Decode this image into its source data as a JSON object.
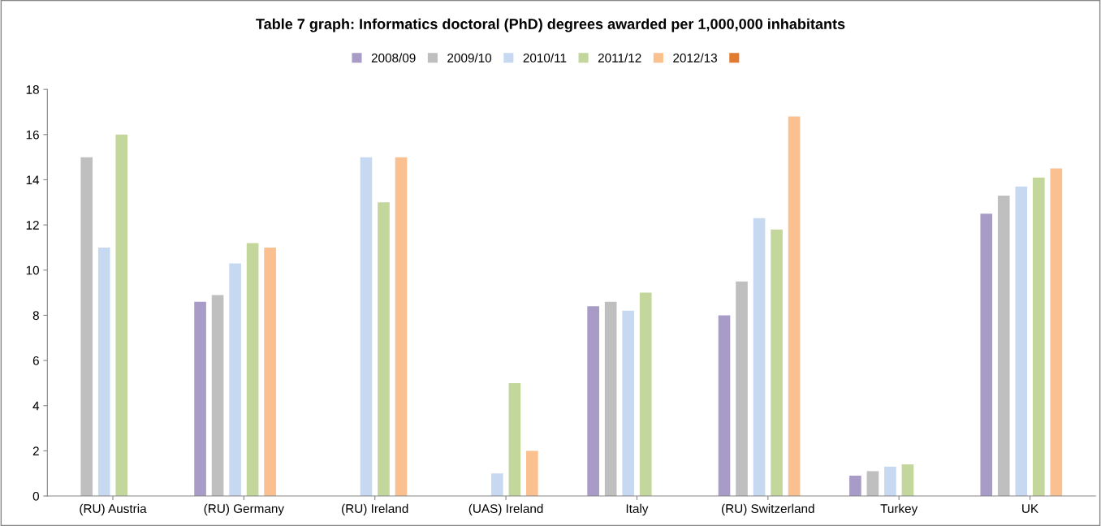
{
  "chart_data": {
    "type": "bar",
    "title": "Table 7 graph: Informatics doctoral (PhD) degrees awarded per 1,000,000 inhabitants",
    "categories": [
      "(RU) Austria",
      "(RU) Germany",
      "(RU) Ireland",
      "(UAS) Ireland",
      "Italy",
      "(RU) Switzerland",
      "Turkey",
      "UK"
    ],
    "series": [
      {
        "name": "2008/09",
        "color": "#a99bc8",
        "values": [
          null,
          8.6,
          null,
          null,
          8.4,
          8.0,
          0.9,
          12.5
        ]
      },
      {
        "name": "2009/10",
        "color": "#bfbfbf",
        "values": [
          15.0,
          8.9,
          null,
          null,
          8.6,
          9.5,
          1.1,
          13.3
        ]
      },
      {
        "name": "2010/11",
        "color": "#c6d9f1",
        "values": [
          11.0,
          10.3,
          15.0,
          1.0,
          8.2,
          12.3,
          1.3,
          13.7
        ]
      },
      {
        "name": "2011/12",
        "color": "#c3d69b",
        "values": [
          16.0,
          11.2,
          13.0,
          5.0,
          9.0,
          11.8,
          1.4,
          14.1
        ]
      },
      {
        "name": "2012/13",
        "color": "#fac090",
        "values": [
          null,
          11.0,
          15.0,
          2.0,
          null,
          16.8,
          null,
          14.5
        ]
      },
      {
        "color": "#e07b30",
        "values": [
          null,
          null,
          null,
          null,
          null,
          null,
          null,
          null
        ]
      }
    ],
    "ylim": [
      0,
      18
    ],
    "yticks": [
      0,
      2,
      4,
      6,
      8,
      10,
      12,
      14,
      16,
      18
    ],
    "grid": false,
    "legend": "top"
  }
}
